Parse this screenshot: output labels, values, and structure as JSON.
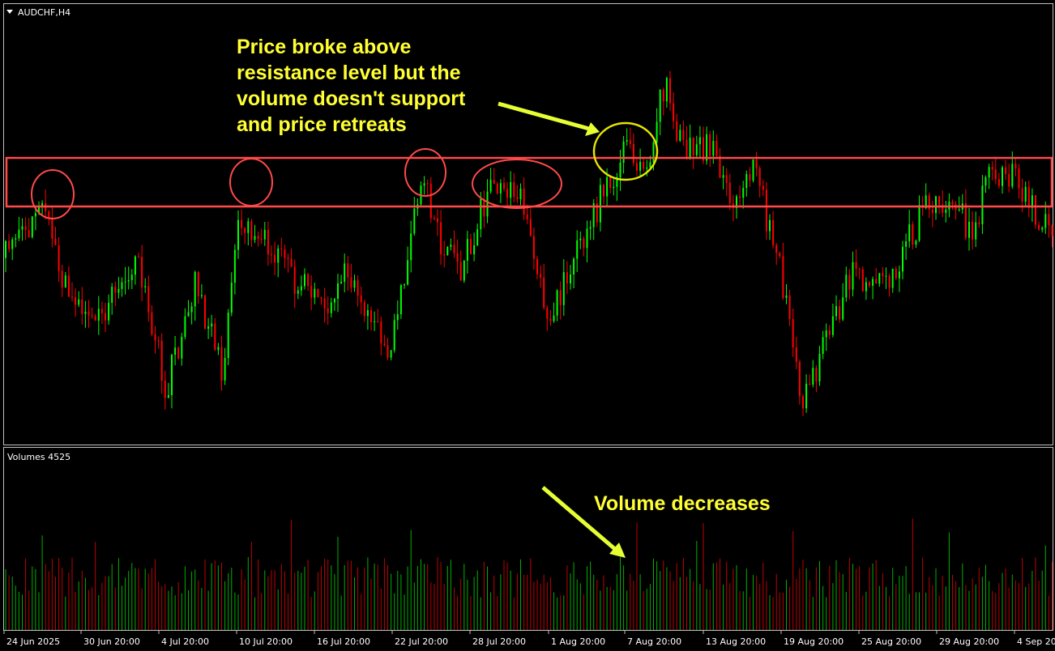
{
  "window": {
    "symbol": "AUDCHF,H4",
    "volume_label": "Volumes 4525"
  },
  "annotations": {
    "price": [
      "Price broke above",
      "resistance level but the",
      "volume doesn't support",
      "and price retreats"
    ],
    "volume": "Volume decreases"
  },
  "time_axis": [
    "24 Jun 2025",
    "30 Jun 20:00",
    "4 Jul 20:00",
    "10 Jul 20:00",
    "16 Jul 20:00",
    "22 Jul 20:00",
    "28 Jul 20:00",
    "1 Aug 20:00",
    "7 Aug 20:00",
    "13 Aug 20:00",
    "19 Aug 20:00",
    "25 Aug 20:00",
    "29 Aug 20:00",
    "4 Sep 20"
  ]
}
